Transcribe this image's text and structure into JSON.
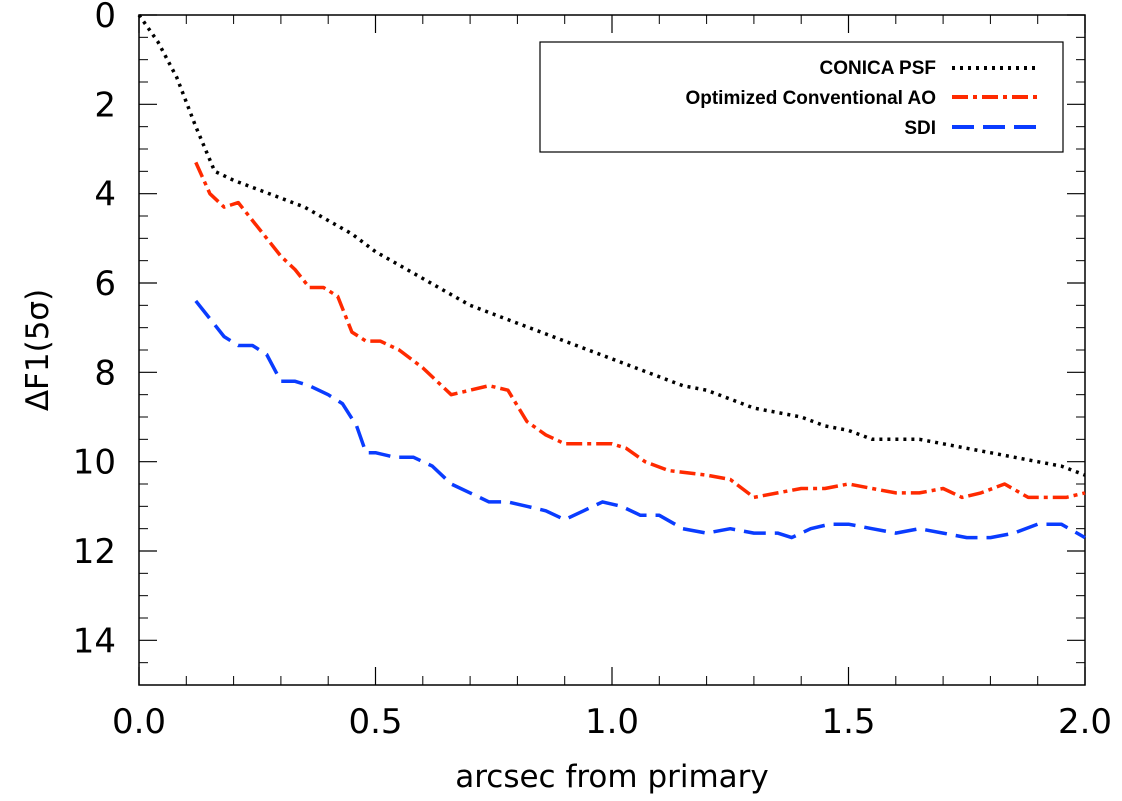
{
  "chart_data": {
    "type": "line",
    "title": "",
    "xlabel": "arcsec from primary",
    "ylabel": "ΔF1(5σ)",
    "xlim": [
      0.0,
      2.0
    ],
    "ylim": [
      15,
      0
    ],
    "y_inverted": true,
    "x_ticks": [
      "0.0",
      "0.5",
      "1.0",
      "1.5",
      "2.0"
    ],
    "x_tick_values": [
      0.0,
      0.5,
      1.0,
      1.5,
      2.0
    ],
    "y_ticks": [
      "0",
      "2",
      "4",
      "6",
      "8",
      "10",
      "12",
      "14"
    ],
    "y_tick_values": [
      0,
      2,
      4,
      6,
      8,
      10,
      12,
      14
    ],
    "grid": false,
    "legend_position": "top-right",
    "series": [
      {
        "name": "CONICA PSF",
        "color": "#000000",
        "style": "dotted",
        "x": [
          0.0,
          0.04,
          0.08,
          0.12,
          0.16,
          0.2,
          0.25,
          0.3,
          0.35,
          0.4,
          0.45,
          0.5,
          0.55,
          0.6,
          0.65,
          0.7,
          0.75,
          0.8,
          0.85,
          0.9,
          0.95,
          1.0,
          1.05,
          1.1,
          1.15,
          1.2,
          1.25,
          1.3,
          1.35,
          1.4,
          1.45,
          1.5,
          1.55,
          1.6,
          1.65,
          1.7,
          1.75,
          1.8,
          1.85,
          1.9,
          1.95,
          2.0
        ],
        "y": [
          0.0,
          0.6,
          1.4,
          2.5,
          3.5,
          3.7,
          3.9,
          4.1,
          4.3,
          4.6,
          4.9,
          5.3,
          5.6,
          5.9,
          6.2,
          6.5,
          6.7,
          6.9,
          7.1,
          7.3,
          7.5,
          7.7,
          7.9,
          8.1,
          8.3,
          8.4,
          8.6,
          8.8,
          8.9,
          9.0,
          9.2,
          9.3,
          9.5,
          9.5,
          9.5,
          9.6,
          9.7,
          9.8,
          9.9,
          10.0,
          10.1,
          10.3
        ]
      },
      {
        "name": "Optimized Conventional AO",
        "color": "#ff2a00",
        "style": "dash-dot",
        "x": [
          0.12,
          0.15,
          0.18,
          0.21,
          0.24,
          0.27,
          0.3,
          0.33,
          0.36,
          0.39,
          0.42,
          0.45,
          0.48,
          0.51,
          0.55,
          0.6,
          0.63,
          0.66,
          0.7,
          0.74,
          0.78,
          0.82,
          0.86,
          0.9,
          0.95,
          1.0,
          1.03,
          1.07,
          1.12,
          1.2,
          1.25,
          1.3,
          1.35,
          1.4,
          1.45,
          1.5,
          1.55,
          1.6,
          1.65,
          1.7,
          1.74,
          1.78,
          1.83,
          1.88,
          1.92,
          1.96,
          2.0
        ],
        "y": [
          3.3,
          4.0,
          4.3,
          4.2,
          4.6,
          5.0,
          5.4,
          5.7,
          6.1,
          6.1,
          6.3,
          7.1,
          7.3,
          7.3,
          7.5,
          7.9,
          8.2,
          8.5,
          8.4,
          8.3,
          8.4,
          9.1,
          9.4,
          9.6,
          9.6,
          9.6,
          9.7,
          10.0,
          10.2,
          10.3,
          10.4,
          10.8,
          10.7,
          10.6,
          10.6,
          10.5,
          10.6,
          10.7,
          10.7,
          10.6,
          10.8,
          10.7,
          10.5,
          10.8,
          10.8,
          10.8,
          10.7
        ]
      },
      {
        "name": "SDI",
        "color": "#0a3cff",
        "style": "dashed",
        "x": [
          0.12,
          0.15,
          0.18,
          0.21,
          0.24,
          0.27,
          0.3,
          0.33,
          0.36,
          0.4,
          0.43,
          0.46,
          0.48,
          0.5,
          0.54,
          0.58,
          0.62,
          0.66,
          0.7,
          0.74,
          0.78,
          0.82,
          0.86,
          0.9,
          0.94,
          0.98,
          1.02,
          1.06,
          1.1,
          1.15,
          1.2,
          1.25,
          1.3,
          1.35,
          1.38,
          1.42,
          1.46,
          1.5,
          1.55,
          1.6,
          1.65,
          1.7,
          1.75,
          1.8,
          1.85,
          1.9,
          1.95,
          2.0
        ],
        "y": [
          6.4,
          6.8,
          7.2,
          7.4,
          7.4,
          7.6,
          8.2,
          8.2,
          8.3,
          8.5,
          8.7,
          9.2,
          9.8,
          9.8,
          9.9,
          9.9,
          10.1,
          10.5,
          10.7,
          10.9,
          10.9,
          11.0,
          11.1,
          11.3,
          11.1,
          10.9,
          11.0,
          11.2,
          11.2,
          11.5,
          11.6,
          11.5,
          11.6,
          11.6,
          11.7,
          11.5,
          11.4,
          11.4,
          11.5,
          11.6,
          11.5,
          11.6,
          11.7,
          11.7,
          11.6,
          11.4,
          11.4,
          11.7
        ]
      }
    ]
  }
}
